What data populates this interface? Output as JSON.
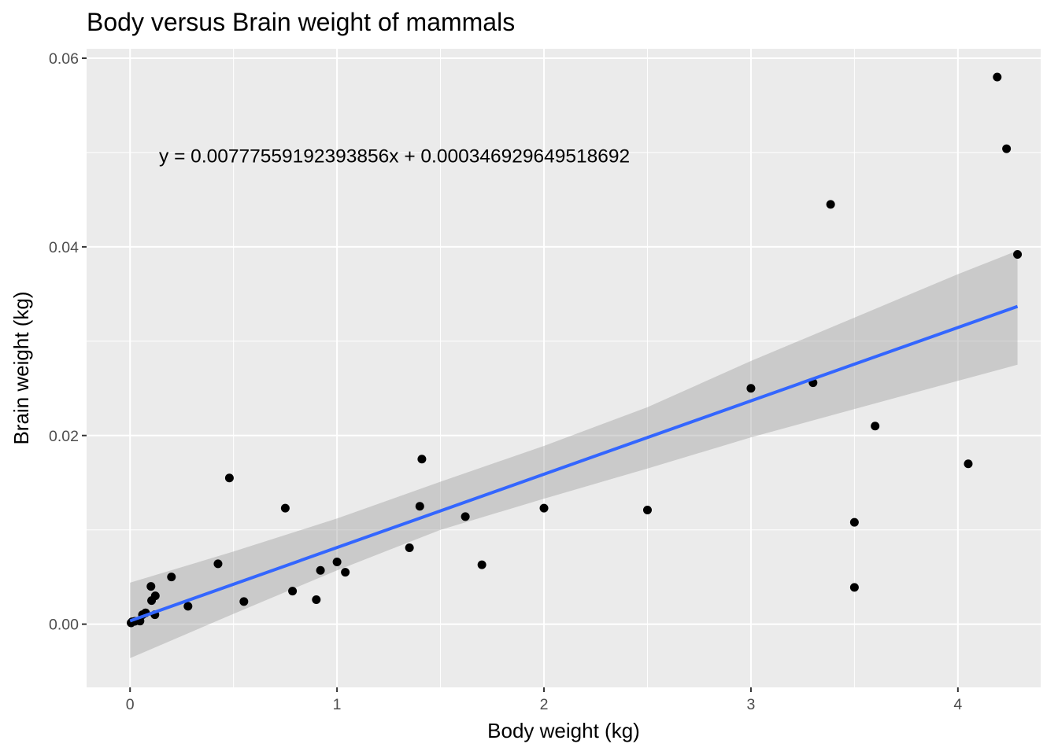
{
  "chart_data": {
    "type": "scatter",
    "title": "Body versus Brain weight of mammals",
    "xlabel": "Body weight (kg)",
    "ylabel": "Brain weight (kg)",
    "xlim": [
      -0.21,
      4.4
    ],
    "ylim": [
      -0.0067,
      0.061
    ],
    "x_ticks": [
      0,
      1,
      2,
      3,
      4
    ],
    "x_tick_labels": [
      "0",
      "1",
      "2",
      "3",
      "4"
    ],
    "y_ticks": [
      0,
      0.02,
      0.04,
      0.06
    ],
    "y_tick_labels": [
      "0.00",
      "0.02",
      "0.04",
      "0.06"
    ],
    "grid": true,
    "annotation": "y = 0.00777559192393856x + 0.000346929649518692",
    "fit": {
      "slope": 0.00777559192393856,
      "intercept": 0.000346929649518692,
      "x_range": [
        0,
        4.288
      ],
      "color": "#3366FF"
    },
    "confidence_band": [
      {
        "x": 0.0,
        "lower": -0.0036,
        "upper": 0.0044
      },
      {
        "x": 0.5,
        "lower": 0.0011,
        "upper": 0.0077
      },
      {
        "x": 1.0,
        "lower": 0.0057,
        "upper": 0.0112
      },
      {
        "x": 1.5,
        "lower": 0.01,
        "upper": 0.0151
      },
      {
        "x": 2.0,
        "lower": 0.0133,
        "upper": 0.0189
      },
      {
        "x": 2.5,
        "lower": 0.0165,
        "upper": 0.023
      },
      {
        "x": 3.0,
        "lower": 0.0198,
        "upper": 0.0279
      },
      {
        "x": 3.5,
        "lower": 0.0228,
        "upper": 0.0325
      },
      {
        "x": 4.0,
        "lower": 0.0258,
        "upper": 0.0371
      },
      {
        "x": 4.288,
        "lower": 0.0275,
        "upper": 0.0396
      }
    ],
    "points": [
      {
        "x": 0.005,
        "y": 0.00014
      },
      {
        "x": 0.01,
        "y": 0.00025
      },
      {
        "x": 0.023,
        "y": 0.0003
      },
      {
        "x": 0.048,
        "y": 0.00033
      },
      {
        "x": 0.06,
        "y": 0.001
      },
      {
        "x": 0.075,
        "y": 0.0012
      },
      {
        "x": 0.101,
        "y": 0.004
      },
      {
        "x": 0.104,
        "y": 0.0025
      },
      {
        "x": 0.12,
        "y": 0.001
      },
      {
        "x": 0.122,
        "y": 0.003
      },
      {
        "x": 0.2,
        "y": 0.005
      },
      {
        "x": 0.28,
        "y": 0.0019
      },
      {
        "x": 0.425,
        "y": 0.0064
      },
      {
        "x": 0.48,
        "y": 0.0155
      },
      {
        "x": 0.55,
        "y": 0.0024
      },
      {
        "x": 0.75,
        "y": 0.0123
      },
      {
        "x": 0.785,
        "y": 0.0035
      },
      {
        "x": 0.9,
        "y": 0.0026
      },
      {
        "x": 0.92,
        "y": 0.0057
      },
      {
        "x": 1.0,
        "y": 0.0066
      },
      {
        "x": 1.04,
        "y": 0.0055
      },
      {
        "x": 1.35,
        "y": 0.0081
      },
      {
        "x": 1.4,
        "y": 0.0125
      },
      {
        "x": 1.41,
        "y": 0.0175
      },
      {
        "x": 1.62,
        "y": 0.0114
      },
      {
        "x": 1.7,
        "y": 0.0063
      },
      {
        "x": 2.0,
        "y": 0.0123
      },
      {
        "x": 2.5,
        "y": 0.0121
      },
      {
        "x": 3.0,
        "y": 0.025
      },
      {
        "x": 3.3,
        "y": 0.0256
      },
      {
        "x": 3.385,
        "y": 0.0445
      },
      {
        "x": 3.5,
        "y": 0.0108
      },
      {
        "x": 3.5,
        "y": 0.0039
      },
      {
        "x": 3.6,
        "y": 0.021
      },
      {
        "x": 4.05,
        "y": 0.017
      },
      {
        "x": 4.19,
        "y": 0.058
      },
      {
        "x": 4.235,
        "y": 0.0504
      },
      {
        "x": 4.288,
        "y": 0.0392
      }
    ]
  }
}
